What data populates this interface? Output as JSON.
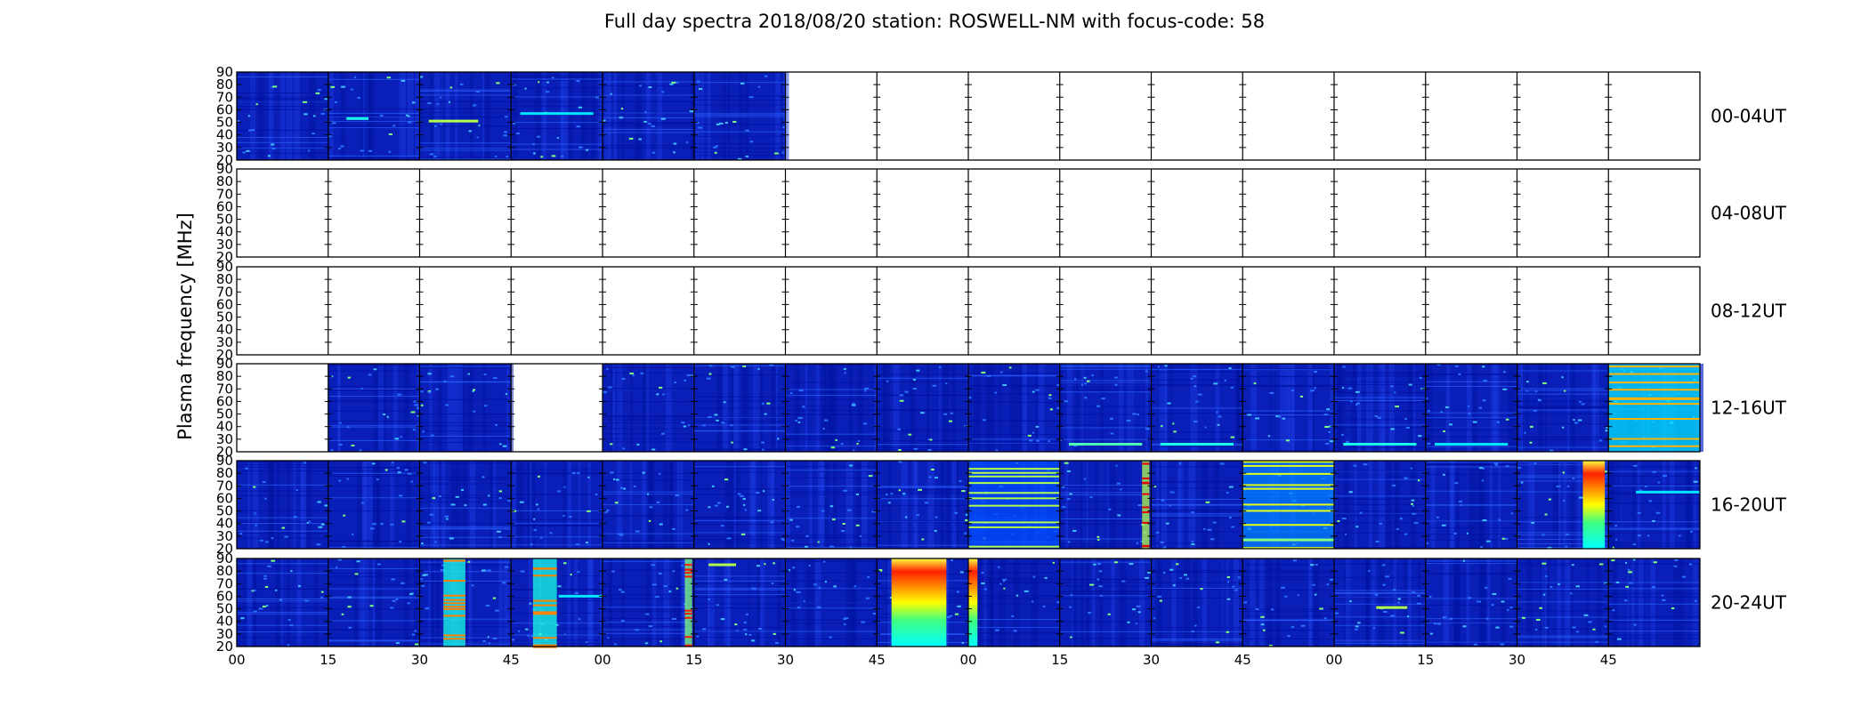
{
  "chart_data": {
    "type": "heatmap",
    "title": "Full day spectra 2018/08/20 station: ROSWELL-NM with focus-code: 58",
    "ylabel": "Plasma frequency [MHz]",
    "xlabel": "",
    "ylim": [
      20,
      90
    ],
    "yticks": [
      "20",
      "30",
      "40",
      "50",
      "60",
      "70",
      "80",
      "90"
    ],
    "xticks": [
      "00",
      "15",
      "30",
      "45",
      "00",
      "15",
      "30",
      "45",
      "00",
      "15",
      "30",
      "45",
      "00",
      "15",
      "30",
      "45"
    ],
    "panel_minutes": 5,
    "panels_per_row": 16,
    "colormap": "jet",
    "rows": [
      {
        "label": "00-04UT",
        "panels": [
          1,
          1,
          1,
          1,
          1,
          1,
          0,
          0,
          0,
          0,
          0,
          0,
          0,
          0,
          0,
          0
        ],
        "features": [
          {
            "panel": 2,
            "freq": 51,
            "from_min": 0.5,
            "to_min": 3.2,
            "level": 0.55
          },
          {
            "panel": 1,
            "freq": 53,
            "from_min": 1.0,
            "to_min": 2.2,
            "level": 0.4
          },
          {
            "panel": 3,
            "freq": 57,
            "from_min": 0.5,
            "to_min": 4.5,
            "level": 0.35
          }
        ]
      },
      {
        "label": "04-08UT",
        "panels": [
          0,
          0,
          0,
          0,
          0,
          0,
          0,
          0,
          0,
          0,
          0,
          0,
          0,
          0,
          0,
          0
        ],
        "features": []
      },
      {
        "label": "08-12UT",
        "panels": [
          0,
          0,
          0,
          0,
          0,
          0,
          0,
          0,
          0,
          0,
          0,
          0,
          0,
          0,
          0,
          0
        ],
        "features": []
      },
      {
        "label": "12-16UT",
        "panels": [
          0,
          1,
          1,
          0,
          1,
          1,
          1,
          1,
          1,
          1,
          1,
          1,
          1,
          1,
          1,
          1
        ],
        "features": [
          {
            "panel": 15,
            "freq": 55,
            "from_min": 0.0,
            "to_min": 5.0,
            "level": 0.5,
            "full": true
          },
          {
            "panel": 9,
            "freq": 26,
            "from_min": 0.5,
            "to_min": 4.5,
            "level": 0.45
          },
          {
            "panel": 10,
            "freq": 26,
            "from_min": 0.5,
            "to_min": 4.5,
            "level": 0.4
          },
          {
            "panel": 12,
            "freq": 26,
            "from_min": 0.5,
            "to_min": 4.5,
            "level": 0.4
          },
          {
            "panel": 13,
            "freq": 26,
            "from_min": 0.5,
            "to_min": 4.5,
            "level": 0.35
          }
        ]
      },
      {
        "label": "16-20UT",
        "panels": [
          1,
          1,
          1,
          1,
          1,
          1,
          1,
          1,
          1,
          1,
          1,
          1,
          1,
          1,
          1,
          1
        ],
        "features": [
          {
            "panel": 8,
            "freq": 60,
            "from_min": 0.0,
            "to_min": 5.0,
            "level": 0.35,
            "full": true
          },
          {
            "panel": 9,
            "freq": 55,
            "from_min": 4.5,
            "to_min": 4.9,
            "level": 0.7,
            "full": true
          },
          {
            "panel": 11,
            "freq": 65,
            "from_min": 0.0,
            "to_min": 5.0,
            "level": 0.4,
            "full": true
          },
          {
            "panel": 11,
            "freq": 27,
            "from_min": 0.0,
            "to_min": 5.0,
            "level": 0.5
          },
          {
            "panel": 14,
            "freq": 55,
            "from_min": 3.6,
            "to_min": 4.8,
            "level": 0.8,
            "full": true
          },
          {
            "panel": 15,
            "freq": 65,
            "from_min": 1.5,
            "to_min": 5.0,
            "level": 0.35
          }
        ]
      },
      {
        "label": "20-24UT",
        "panels": [
          1,
          1,
          1,
          1,
          1,
          1,
          1,
          1,
          1,
          1,
          1,
          1,
          1,
          1,
          1,
          1
        ],
        "features": [
          {
            "panel": 2,
            "freq": 70,
            "from_min": 1.3,
            "to_min": 2.5,
            "level": 0.55,
            "full": true
          },
          {
            "panel": 3,
            "freq": 70,
            "from_min": 1.2,
            "to_min": 2.5,
            "level": 0.55,
            "full": true
          },
          {
            "panel": 3,
            "freq": 60,
            "from_min": 2.6,
            "to_min": 5.0,
            "level": 0.35
          },
          {
            "panel": 4,
            "freq": 55,
            "from_min": 4.5,
            "to_min": 4.9,
            "level": 0.65,
            "full": true
          },
          {
            "panel": 5,
            "freq": 85,
            "from_min": 0.8,
            "to_min": 2.3,
            "level": 0.55
          },
          {
            "panel": 7,
            "freq": 55,
            "from_min": 0.8,
            "to_min": 3.8,
            "level": 0.9,
            "full": true
          },
          {
            "panel": 8,
            "freq": 55,
            "from_min": 0.0,
            "to_min": 0.5,
            "level": 0.85,
            "full": true
          },
          {
            "panel": 12,
            "freq": 51,
            "from_min": 2.3,
            "to_min": 4.0,
            "level": 0.55
          }
        ]
      }
    ]
  }
}
